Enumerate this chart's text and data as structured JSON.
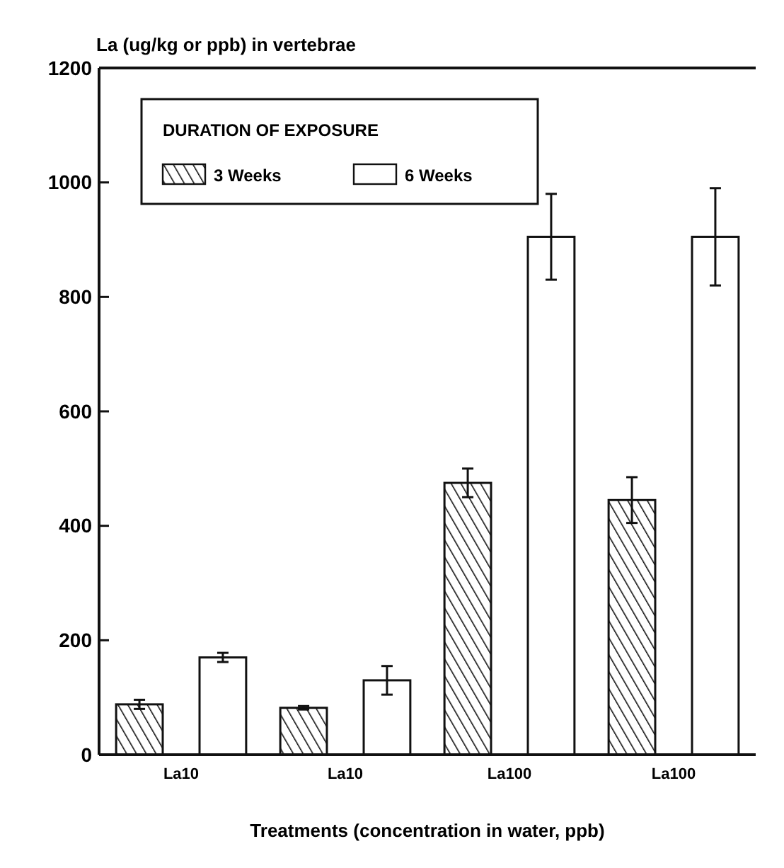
{
  "chart_data": {
    "type": "bar",
    "ylabel": "La (ug/kg or ppb) in vertebrae",
    "xlabel": "Treatments (concentration in water, ppb)",
    "legend_title": "DURATION OF EXPOSURE",
    "categories": [
      "La10",
      "La10",
      "La100",
      "La100"
    ],
    "series": [
      {
        "name": "3 Weeks",
        "color": "#111111",
        "values": [
          88,
          82,
          475,
          445
        ],
        "errors": [
          8,
          3,
          25,
          40
        ]
      },
      {
        "name": "6 Weeks",
        "color": "#ffffff",
        "values": [
          170,
          130,
          905,
          905
        ],
        "errors": [
          8,
          25,
          75,
          85
        ]
      }
    ],
    "ylim": [
      0,
      1200
    ],
    "yticks": [
      0,
      200,
      400,
      600,
      800,
      1000,
      1200
    ],
    "grid": false,
    "legend": "top left"
  }
}
